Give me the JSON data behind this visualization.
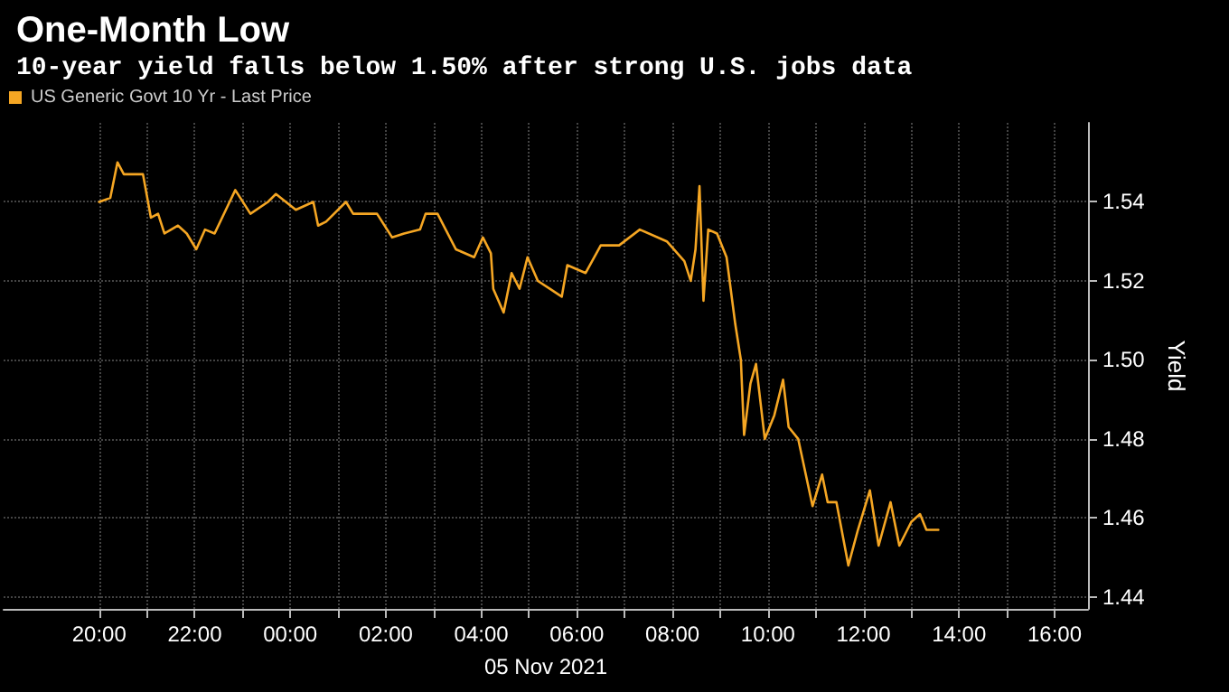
{
  "chart_data": {
    "type": "line",
    "title": "One-Month Low",
    "subtitle": "10-year yield falls below 1.50% after strong U.S. jobs data",
    "xlabel": "05 Nov 2021",
    "ylabel": "Yield",
    "series": [
      {
        "name": "US Generic Govt 10 Yr - Last Price",
        "color": "#f5a623",
        "x": [
          "2021-11-04T20:00",
          "2021-11-04T20:14",
          "2021-11-04T20:23",
          "2021-11-04T20:31",
          "2021-11-04T20:55",
          "2021-11-04T21:05",
          "2021-11-04T21:14",
          "2021-11-04T21:22",
          "2021-11-04T21:39",
          "2021-11-04T21:50",
          "2021-11-04T22:02",
          "2021-11-04T22:13",
          "2021-11-04T22:25",
          "2021-11-04T22:51",
          "2021-11-04T23:10",
          "2021-11-04T23:32",
          "2021-11-04T23:42",
          "2021-11-05T00:07",
          "2021-11-05T00:29",
          "2021-11-05T00:35",
          "2021-11-05T00:45",
          "2021-11-05T01:10",
          "2021-11-05T01:19",
          "2021-11-05T01:49",
          "2021-11-05T02:08",
          "2021-11-05T02:23",
          "2021-11-05T02:43",
          "2021-11-05T02:50",
          "2021-11-05T03:05",
          "2021-11-05T03:28",
          "2021-11-05T03:51",
          "2021-11-05T04:02",
          "2021-11-05T04:12",
          "2021-11-05T04:15",
          "2021-11-05T04:28",
          "2021-11-05T04:38",
          "2021-11-05T04:48",
          "2021-11-05T04:58",
          "2021-11-05T05:11",
          "2021-11-05T05:26",
          "2021-11-05T05:41",
          "2021-11-05T05:48",
          "2021-11-05T06:11",
          "2021-11-05T06:30",
          "2021-11-05T06:53",
          "2021-11-05T07:19",
          "2021-11-05T07:53",
          "2021-11-05T08:15",
          "2021-11-05T08:23",
          "2021-11-05T08:29",
          "2021-11-05T08:34",
          "2021-11-05T08:39",
          "2021-11-05T08:45",
          "2021-11-05T08:56",
          "2021-11-05T09:08",
          "2021-11-05T09:19",
          "2021-11-05T09:26",
          "2021-11-05T09:30",
          "2021-11-05T09:38",
          "2021-11-05T09:45",
          "2021-11-05T09:56",
          "2021-11-05T10:08",
          "2021-11-05T10:19",
          "2021-11-05T10:26",
          "2021-11-05T10:38",
          "2021-11-05T10:56",
          "2021-11-05T11:08",
          "2021-11-05T11:15",
          "2021-11-05T11:26",
          "2021-11-05T11:41",
          "2021-11-05T11:53",
          "2021-11-05T12:08",
          "2021-11-05T12:19",
          "2021-11-05T12:34",
          "2021-11-05T12:45",
          "2021-11-05T13:00",
          "2021-11-05T13:11",
          "2021-11-05T13:19",
          "2021-11-05T13:34"
        ],
        "values": [
          1.54,
          1.541,
          1.55,
          1.547,
          1.547,
          1.536,
          1.537,
          1.532,
          1.534,
          1.532,
          1.528,
          1.533,
          1.532,
          1.543,
          1.537,
          1.54,
          1.542,
          1.538,
          1.54,
          1.534,
          1.535,
          1.54,
          1.537,
          1.537,
          1.531,
          1.532,
          1.533,
          1.537,
          1.537,
          1.528,
          1.526,
          1.531,
          1.527,
          1.518,
          1.512,
          1.522,
          1.518,
          1.526,
          1.52,
          1.518,
          1.516,
          1.524,
          1.522,
          1.529,
          1.529,
          1.533,
          1.53,
          1.525,
          1.52,
          1.528,
          1.544,
          1.515,
          1.533,
          1.532,
          1.526,
          1.509,
          1.5,
          1.481,
          1.494,
          1.499,
          1.48,
          1.486,
          1.495,
          1.483,
          1.48,
          1.463,
          1.471,
          1.464,
          1.464,
          1.448,
          1.457,
          1.467,
          1.453,
          1.464,
          1.453,
          1.459,
          1.461,
          1.457,
          1.457
        ]
      }
    ],
    "xlim": [
      "2021-11-04T18:00",
      "2021-11-05T16:42"
    ],
    "xticks": [
      {
        "value": "2021-11-04T20:00",
        "label": "20:00"
      },
      {
        "value": "2021-11-04T21:00",
        "label": null
      },
      {
        "value": "2021-11-04T22:00",
        "label": "22:00"
      },
      {
        "value": "2021-11-04T23:00",
        "label": null
      },
      {
        "value": "2021-11-05T00:00",
        "label": "00:00"
      },
      {
        "value": "2021-11-05T01:00",
        "label": null
      },
      {
        "value": "2021-11-05T02:00",
        "label": "02:00"
      },
      {
        "value": "2021-11-05T03:00",
        "label": null
      },
      {
        "value": "2021-11-05T04:00",
        "label": "04:00"
      },
      {
        "value": "2021-11-05T05:00",
        "label": null
      },
      {
        "value": "2021-11-05T06:00",
        "label": "06:00"
      },
      {
        "value": "2021-11-05T07:00",
        "label": null
      },
      {
        "value": "2021-11-05T08:00",
        "label": "08:00"
      },
      {
        "value": "2021-11-05T09:00",
        "label": null
      },
      {
        "value": "2021-11-05T10:00",
        "label": "10:00"
      },
      {
        "value": "2021-11-05T11:00",
        "label": null
      },
      {
        "value": "2021-11-05T12:00",
        "label": "12:00"
      },
      {
        "value": "2021-11-05T13:00",
        "label": null
      },
      {
        "value": "2021-11-05T14:00",
        "label": "14:00"
      },
      {
        "value": "2021-11-05T15:00",
        "label": null
      },
      {
        "value": "2021-11-05T16:00",
        "label": "16:00"
      }
    ],
    "ylim": [
      1.437,
      1.56
    ],
    "yticks": [
      {
        "value": 1.44,
        "label": "1.44"
      },
      {
        "value": 1.46,
        "label": "1.46"
      },
      {
        "value": 1.48,
        "label": "1.48"
      },
      {
        "value": 1.5,
        "label": "1.50"
      },
      {
        "value": 1.52,
        "label": "1.52"
      },
      {
        "value": 1.54,
        "label": "1.54"
      }
    ],
    "grid": true,
    "legend": "top left",
    "marker": "none",
    "line_style": "solid"
  }
}
